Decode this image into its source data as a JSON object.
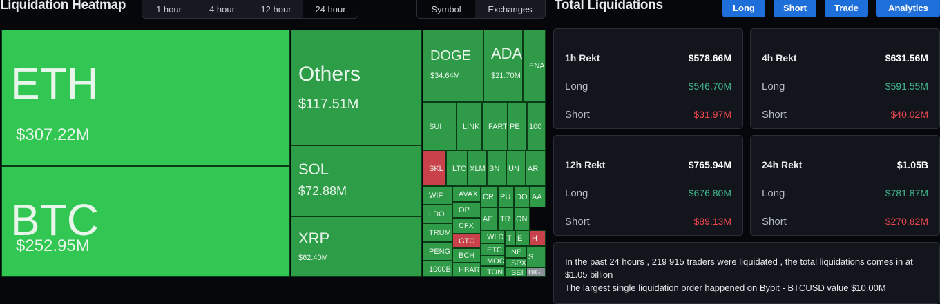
{
  "header": {
    "title": "Liquidation Heatmap",
    "time_tabs": [
      "1 hour",
      "4 hour",
      "12 hour",
      "24 hour"
    ],
    "view_tabs": [
      "Symbol",
      "Exchanges"
    ],
    "panel_title": "Total Liquidations",
    "buttons": [
      "Long",
      "Short",
      "Trade",
      "Analytics"
    ]
  },
  "heatmap": {
    "tiles": [
      {
        "label": "ETH",
        "value": "$307.22M"
      },
      {
        "label": "BTC",
        "value": "$252.95M"
      },
      {
        "label": "Others",
        "value": "$117.51M"
      },
      {
        "label": "SOL",
        "value": "$72.88M"
      },
      {
        "label": "XRP",
        "value": "$62.40M"
      },
      {
        "label": "DOGE",
        "value": "$34.64M"
      },
      {
        "label": "ADA",
        "value": "$21.70M"
      },
      {
        "label": "ENA"
      },
      {
        "label": "SUI"
      },
      {
        "label": "LINK"
      },
      {
        "label": "FART"
      },
      {
        "label": "PE"
      },
      {
        "label": "100"
      },
      {
        "label": "SKL"
      },
      {
        "label": "LTC"
      },
      {
        "label": "XLM"
      },
      {
        "label": "BN"
      },
      {
        "label": "UN"
      },
      {
        "label": "AR"
      },
      {
        "label": "WIF"
      },
      {
        "label": "AVAX"
      },
      {
        "label": "OP"
      },
      {
        "label": "LDO"
      },
      {
        "label": "CFX"
      },
      {
        "label": "TRUM"
      },
      {
        "label": "GTC"
      },
      {
        "label": "PENG"
      },
      {
        "label": "BCH"
      },
      {
        "label": "1000B"
      },
      {
        "label": "HBAR"
      },
      {
        "label": "CR"
      },
      {
        "label": "PU"
      },
      {
        "label": "DO"
      },
      {
        "label": "AA"
      },
      {
        "label": "AP"
      },
      {
        "label": "TR"
      },
      {
        "label": "ON"
      },
      {
        "label": "WLD"
      },
      {
        "label": "T"
      },
      {
        "label": "E"
      },
      {
        "label": "H"
      },
      {
        "label": "ETC"
      },
      {
        "label": "NE"
      },
      {
        "label": "S"
      },
      {
        "label": "MOC"
      },
      {
        "label": "SPX"
      },
      {
        "label": "TON"
      },
      {
        "label": "SEI"
      },
      {
        "label": "BIG"
      }
    ]
  },
  "cards": [
    {
      "title": "1h Rekt",
      "total": "$578.66M",
      "long_label": "Long",
      "long": "$546.70M",
      "short_label": "Short",
      "short": "$31.97M"
    },
    {
      "title": "4h Rekt",
      "total": "$631.56M",
      "long_label": "Long",
      "long": "$591.55M",
      "short_label": "Short",
      "short": "$40.02M"
    },
    {
      "title": "12h Rekt",
      "total": "$765.94M",
      "long_label": "Long",
      "long": "$676.80M",
      "short_label": "Short",
      "short": "$89.13M"
    },
    {
      "title": "24h Rekt",
      "total": "$1.05B",
      "long_label": "Long",
      "long": "$781.87M",
      "short_label": "Short",
      "short": "$270.82M"
    }
  ],
  "summary": [
    "In the past 24 hours , 219 915 traders were liquidated , the total liquidations comes in at $1.05 billion",
    "The largest single liquidation order happened on Bybit - BTCUSD value $10.00M"
  ]
}
